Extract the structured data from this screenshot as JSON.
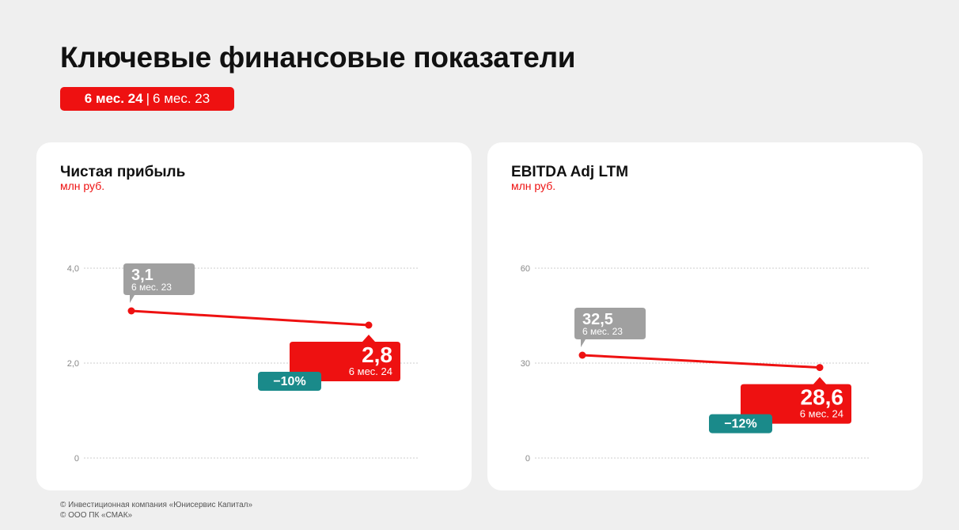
{
  "header": {
    "title": "Ключевые финансовые показатели",
    "period_active": "6 мес. 24",
    "period_separator": "|",
    "period_other": "6 мес. 23"
  },
  "colors": {
    "accent": "#ee1111",
    "previous": "#a0a0a0",
    "change": "#1a8a8a",
    "grid": "#cccccc"
  },
  "chart_data": [
    {
      "type": "line",
      "title": "Чистая прибыль",
      "unit": "млн руб.",
      "yticks": [
        0,
        2,
        4
      ],
      "ytick_labels": [
        "0",
        "2,0",
        "4,0"
      ],
      "ylim": [
        0,
        4
      ],
      "grid": true,
      "points": [
        {
          "value": 3.1,
          "label": "3,1",
          "period": "6 мес. 23",
          "style": "previous"
        },
        {
          "value": 2.8,
          "label": "2,8",
          "period": "6 мес. 24",
          "style": "current"
        }
      ],
      "change_label": "−10%"
    },
    {
      "type": "line",
      "title": "EBITDA Adj LTM",
      "unit": "млн руб.",
      "yticks": [
        0,
        30,
        60
      ],
      "ytick_labels": [
        "0",
        "30",
        "60"
      ],
      "ylim": [
        0,
        60
      ],
      "grid": true,
      "points": [
        {
          "value": 32.5,
          "label": "32,5",
          "period": "6 мес. 23",
          "style": "previous"
        },
        {
          "value": 28.6,
          "label": "28,6",
          "period": "6 мес. 24",
          "style": "current"
        }
      ],
      "change_label": "−12%"
    }
  ],
  "footer": {
    "line1": "© Инвестиционная компания «Юнисервис Капитал»",
    "line2": "© ООО ПК «СМАК»"
  }
}
